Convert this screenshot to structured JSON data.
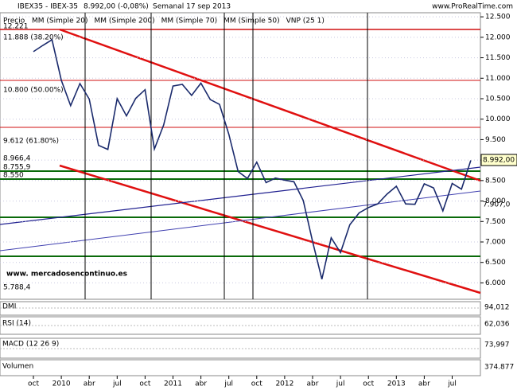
{
  "header": {
    "symbol": "IBEX35 - IBEX-35",
    "quote": "8.992,00 (-0,08%)",
    "period": "Semanal 17 sep 2013",
    "source": "www.ProRealTime.com"
  },
  "chart_data": {
    "type": "line",
    "categories": [
      "oct",
      null,
      null,
      "2010",
      null,
      null,
      "abr",
      null,
      null,
      "jul",
      null,
      null,
      "oct",
      null,
      null,
      "2011",
      null,
      null,
      "abr",
      null,
      null,
      "jul",
      null,
      null,
      "oct",
      null,
      null,
      "2012",
      null,
      null,
      "abr",
      null,
      null,
      "jul",
      null,
      null,
      "oct",
      null,
      null,
      "2013",
      null,
      null,
      "abr",
      null,
      null,
      "jul",
      null,
      null
    ],
    "series": [
      {
        "name": "Precio",
        "color": "#1a2a6c",
        "values": [
          11650,
          11800,
          11940,
          10950,
          10330,
          10870,
          10490,
          9360,
          9260,
          10500,
          10080,
          10510,
          10720,
          9270,
          9860,
          10810,
          10850,
          10580,
          10880,
          10480,
          10360,
          9630,
          8720,
          8550,
          8950,
          8450,
          8560,
          8510,
          8470,
          8010,
          7010,
          6090,
          7100,
          6740,
          7420,
          7710,
          7840,
          7930,
          8170,
          8360,
          7930,
          7920,
          8420,
          8320,
          7760,
          8430,
          8290,
          8992
        ]
      }
    ],
    "overlays": [
      {
        "name": "MM (Simple 20)",
        "color": "#cc2222"
      },
      {
        "name": "MM (Simple 200)",
        "color": "#1f5f1f"
      },
      {
        "name": "MM (Simple 70)",
        "color": "#22228a"
      },
      {
        "name": "MM (Simple 50)",
        "color": "#999999"
      },
      {
        "name": "VNP (25 1)",
        "color": "#999999"
      }
    ],
    "ylim": [
      5600,
      12600
    ],
    "yticks": [
      {
        "value": 12500,
        "label": "12.500"
      },
      {
        "value": 12000,
        "label": "12.000"
      },
      {
        "value": 11500,
        "label": "11.500"
      },
      {
        "value": 11000,
        "label": "11.000"
      },
      {
        "value": 10500,
        "label": "10.500"
      },
      {
        "value": 10000,
        "label": "10.000"
      },
      {
        "value": 9500,
        "label": "9.500"
      },
      {
        "value": 9000,
        "label": "9.000"
      },
      {
        "value": 8500,
        "label": "8.500"
      },
      {
        "value": 8000,
        "label": "8.000"
      },
      {
        "value": 7500,
        "label": "7.500"
      },
      {
        "value": 7000,
        "label": "7.000"
      },
      {
        "value": 6500,
        "label": "6.500"
      },
      {
        "value": 6000,
        "label": "6.000"
      }
    ],
    "grid": true,
    "annotations": [
      "12.221",
      "11.888 (38.20%)",
      "10.800 (50.00%)",
      "9.612 (61.80%)",
      "8.966,4",
      "8.755,9",
      "8.550",
      "5.788,4",
      "8.992,00",
      "7.907,0",
      "www. mercadosencontinuo.es"
    ],
    "indicators": [
      {
        "name": "DMI",
        "value": "94,012"
      },
      {
        "name": "RSI (14)",
        "value": "62,036"
      },
      {
        "name": "MACD (12 26 9)",
        "value": "73,997"
      },
      {
        "name": "Volumen",
        "value": "374.877"
      }
    ]
  }
}
